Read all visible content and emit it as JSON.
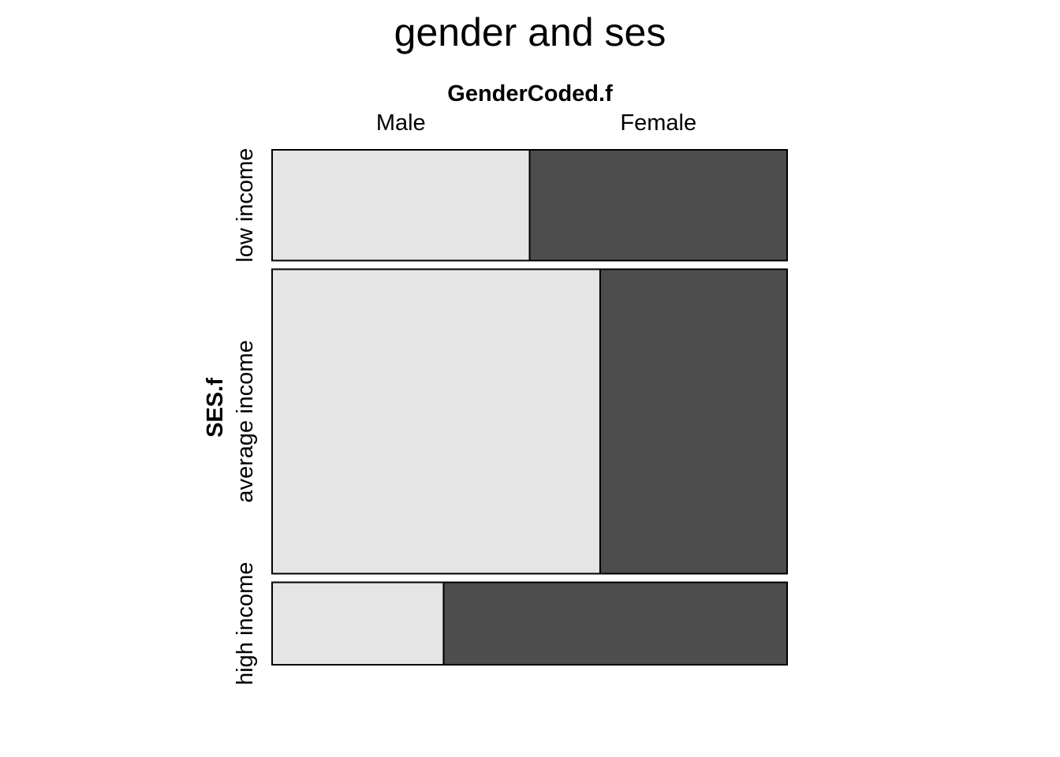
{
  "chart_data": {
    "type": "mosaic",
    "title": "gender and ses",
    "x_variable": "GenderCoded.f",
    "y_variable": "SES.f",
    "x_levels": [
      "Male",
      "Female"
    ],
    "y_levels": [
      "low income",
      "average income",
      "high income"
    ],
    "row_proportions": [
      0.211,
      0.58,
      0.157
    ],
    "cells": [
      {
        "row": "low income",
        "column": "Male",
        "share": 0.5
      },
      {
        "row": "low income",
        "column": "Female",
        "share": 0.5
      },
      {
        "row": "average income",
        "column": "Male",
        "share": 0.637
      },
      {
        "row": "average income",
        "column": "Female",
        "share": 0.363
      },
      {
        "row": "high income",
        "column": "Male",
        "share": 0.333
      },
      {
        "row": "high income",
        "column": "Female",
        "share": 0.667
      }
    ],
    "colors": {
      "Male": "#e5e5e5",
      "Female": "#4d4d4d",
      "border": "#000000"
    }
  }
}
